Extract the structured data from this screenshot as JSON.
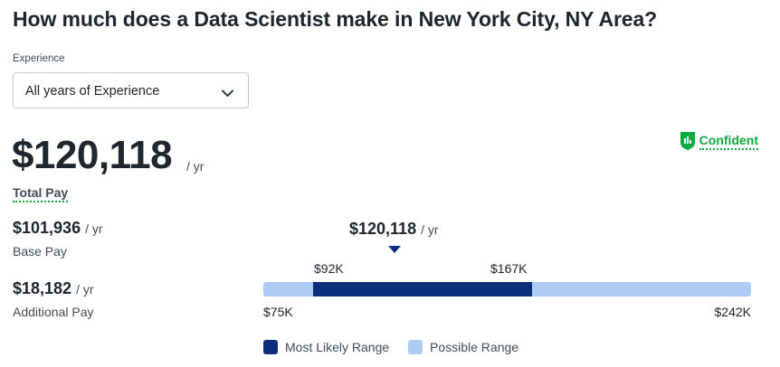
{
  "title": "How much does a Data Scientist make in New York City, NY Area?",
  "experience": {
    "label": "Experience",
    "selected": "All years of Experience"
  },
  "total": {
    "amount": "$120,118",
    "unit": "/ yr",
    "label": "Total Pay"
  },
  "confidence": {
    "label": "Confident",
    "color": "#0caa41"
  },
  "base_pay": {
    "amount": "$101,936",
    "unit": "/ yr",
    "label": "Base Pay"
  },
  "additional_pay": {
    "amount": "$18,182",
    "unit": "/ yr",
    "label": "Additional Pay"
  },
  "range": {
    "median_label": "$120,118",
    "median_unit": "/ yr",
    "likely_low_label": "$92K",
    "likely_high_label": "$167K",
    "min_label": "$75K",
    "max_label": "$242K",
    "min": 75000,
    "max": 242000,
    "likely_low": 92000,
    "likely_high": 167000,
    "median": 120118,
    "likely_color": "#0d2e7a",
    "possible_color": "#aecbf5"
  },
  "legend": {
    "likely": "Most Likely Range",
    "possible": "Possible Range"
  },
  "icons": {
    "dropdown": "chevron-down-icon",
    "confidence": "shield-chart-icon"
  }
}
